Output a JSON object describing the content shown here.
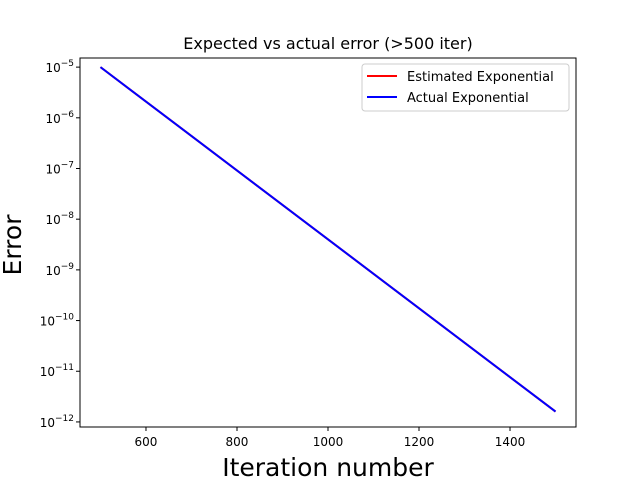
{
  "chart_data": {
    "type": "line",
    "title": "Expected vs actual error (>500 iter)",
    "xlabel": "Iteration number",
    "ylabel": "Error",
    "xlim": [
      455,
      1545
    ],
    "ylim_log10": [
      -12.1,
      -4.82
    ],
    "yscale": "log",
    "x_ticks": [
      600,
      800,
      1000,
      1200,
      1400
    ],
    "y_tick_exponents": [
      -5,
      -6,
      -7,
      -8,
      -9,
      -10,
      -11,
      -12
    ],
    "y_tick_base": "10",
    "legend_position": "top-right",
    "grid": false,
    "series": [
      {
        "name": "Estimated Exponential",
        "color": "#ff0000",
        "x": [
          500,
          1500
        ],
        "y": [
          1e-05,
          1.6e-12
        ]
      },
      {
        "name": "Actual Exponential",
        "color": "#0000ff",
        "x": [
          500,
          1500
        ],
        "y": [
          1e-05,
          1.6e-12
        ]
      }
    ]
  }
}
